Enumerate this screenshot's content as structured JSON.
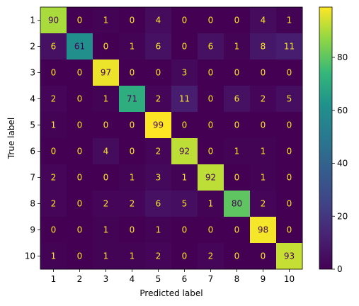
{
  "chart_data": {
    "type": "heatmap",
    "title": "",
    "xlabel": "Predicted label",
    "ylabel": "True label",
    "categories": [
      "1",
      "2",
      "3",
      "4",
      "5",
      "6",
      "7",
      "8",
      "9",
      "10"
    ],
    "matrix": [
      [
        90,
        0,
        1,
        0,
        4,
        0,
        0,
        0,
        4,
        1
      ],
      [
        6,
        61,
        0,
        1,
        6,
        0,
        6,
        1,
        8,
        11
      ],
      [
        0,
        0,
        97,
        0,
        0,
        3,
        0,
        0,
        0,
        0
      ],
      [
        2,
        0,
        1,
        71,
        2,
        11,
        0,
        6,
        2,
        5
      ],
      [
        1,
        0,
        0,
        0,
        99,
        0,
        0,
        0,
        0,
        0
      ],
      [
        0,
        0,
        4,
        0,
        2,
        92,
        0,
        1,
        1,
        0
      ],
      [
        2,
        0,
        0,
        1,
        3,
        1,
        92,
        0,
        1,
        0
      ],
      [
        2,
        0,
        2,
        2,
        6,
        5,
        1,
        80,
        2,
        0
      ],
      [
        0,
        0,
        1,
        0,
        1,
        0,
        0,
        0,
        98,
        0
      ],
      [
        1,
        0,
        1,
        1,
        2,
        0,
        2,
        0,
        0,
        93
      ]
    ],
    "colormap": "viridis",
    "vmin": 0,
    "vmax": 99,
    "colorbar_ticks": [
      0,
      20,
      40,
      60,
      80
    ],
    "grid": false
  }
}
